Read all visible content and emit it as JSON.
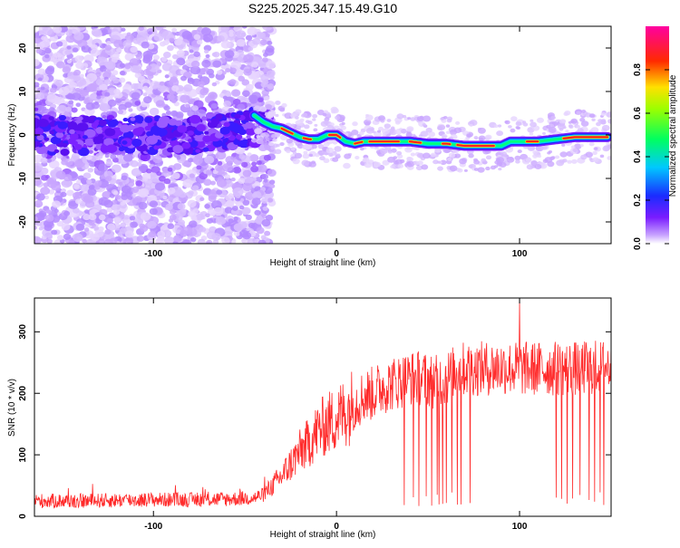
{
  "page": {
    "title": "S225.2025.347.15.49.G10",
    "colors": {
      "snr_line": "#ff2a2a",
      "axis": "#000000",
      "background": "#ffffff"
    }
  },
  "chart_data": [
    {
      "id": "spectrogram",
      "type": "heatmap",
      "title": "S225.2025.347.15.49.G10",
      "xlabel": "Height of straight line (km)",
      "ylabel": "Frequency (Hz)",
      "xlim": [
        -165,
        150
      ],
      "ylim": [
        -25,
        25
      ],
      "xticks": [
        -100,
        0,
        100
      ],
      "yticks": [
        -20,
        -10,
        0,
        10,
        20
      ],
      "colorbar": {
        "label": "Normalized spectral amplitude",
        "range": [
          0.0,
          1.0
        ],
        "ticks": [
          0.0,
          0.2,
          0.4,
          0.6,
          0.8
        ],
        "colormap": "rainbow (purple-blue-cyan-green-yellow-red-magenta)"
      },
      "dominant_frequency_trace": {
        "x": [
          -45,
          -40,
          -35,
          -30,
          -25,
          -20,
          -15,
          -10,
          -5,
          0,
          5,
          10,
          15,
          20,
          30,
          40,
          50,
          60,
          70,
          80,
          90,
          95,
          100,
          110,
          120,
          130,
          140,
          148
        ],
        "y": [
          4.5,
          3,
          2,
          1.5,
          0.5,
          -0.5,
          -1,
          -1,
          0,
          0,
          -1.5,
          -2,
          -1.5,
          -1.5,
          -1.5,
          -1.5,
          -2,
          -2,
          -2.5,
          -2.5,
          -2.5,
          -1.5,
          -1.5,
          -1.5,
          -1,
          -0.5,
          -0.5,
          -0.5
        ]
      },
      "noise_region": {
        "x_range": [
          -165,
          -40
        ],
        "description_hidden": true
      }
    },
    {
      "id": "snr",
      "type": "line",
      "xlabel": "Height of straight line (km)",
      "ylabel": "SNR (10 * v/v)",
      "xlim": [
        -165,
        150
      ],
      "ylim": [
        0,
        355
      ],
      "xticks": [
        -100,
        0,
        100
      ],
      "yticks": [
        0,
        100,
        200,
        300
      ],
      "envelope": {
        "x": [
          -165,
          -140,
          -120,
          -100,
          -80,
          -60,
          -45,
          -40,
          -35,
          -30,
          -25,
          -20,
          -15,
          -10,
          -5,
          0,
          5,
          10,
          15,
          20,
          25,
          30,
          35,
          40,
          45,
          50,
          55,
          60,
          65,
          70,
          80,
          90,
          100,
          110,
          120,
          130,
          140,
          150
        ],
        "y": [
          25,
          25,
          26,
          27,
          27,
          28,
          30,
          35,
          50,
          65,
          85,
          105,
          120,
          140,
          150,
          160,
          170,
          185,
          195,
          200,
          210,
          215,
          220,
          225,
          225,
          222,
          218,
          225,
          235,
          240,
          240,
          242,
          240,
          240,
          240,
          240,
          242,
          245
        ]
      },
      "spike": {
        "x": 100,
        "y": 350
      },
      "dropouts_x": [
        37,
        42,
        45,
        49,
        52,
        55,
        56,
        58,
        60,
        63,
        66,
        68,
        73,
        120,
        123,
        126,
        129,
        133,
        138,
        141,
        144,
        146
      ]
    }
  ]
}
